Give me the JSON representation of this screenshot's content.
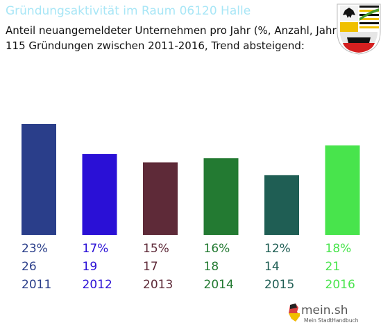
{
  "header": {
    "title": "Gründungsaktivität im Raum 06120 Halle",
    "subtitle_line1": "Anteil neuangemeldeter Unternehmen pro Jahr (%, Anzahl, Jahr)",
    "subtitle_line2": "115 Gründungen zwischen 2011-2016, Trend absteigend:"
  },
  "crest": {
    "icon": "coat-of-arms-sachsen-anhalt"
  },
  "chart_data": {
    "type": "bar",
    "categories": [
      "2011",
      "2012",
      "2013",
      "2014",
      "2015",
      "2016"
    ],
    "percent_labels": [
      "23%",
      "17%",
      "15%",
      "16%",
      "12%",
      "18%"
    ],
    "values": [
      26,
      19,
      17,
      18,
      14,
      21
    ],
    "colors": [
      "#2a3e8a",
      "#2a10d6",
      "#5e2a38",
      "#237a32",
      "#1f5e54",
      "#48e44c"
    ],
    "ylim": [
      0,
      26
    ]
  },
  "logo": {
    "brand": "mein.sh",
    "tagline": "Mein StadtHandbuch",
    "icon": "germany-flag-map-icon"
  }
}
